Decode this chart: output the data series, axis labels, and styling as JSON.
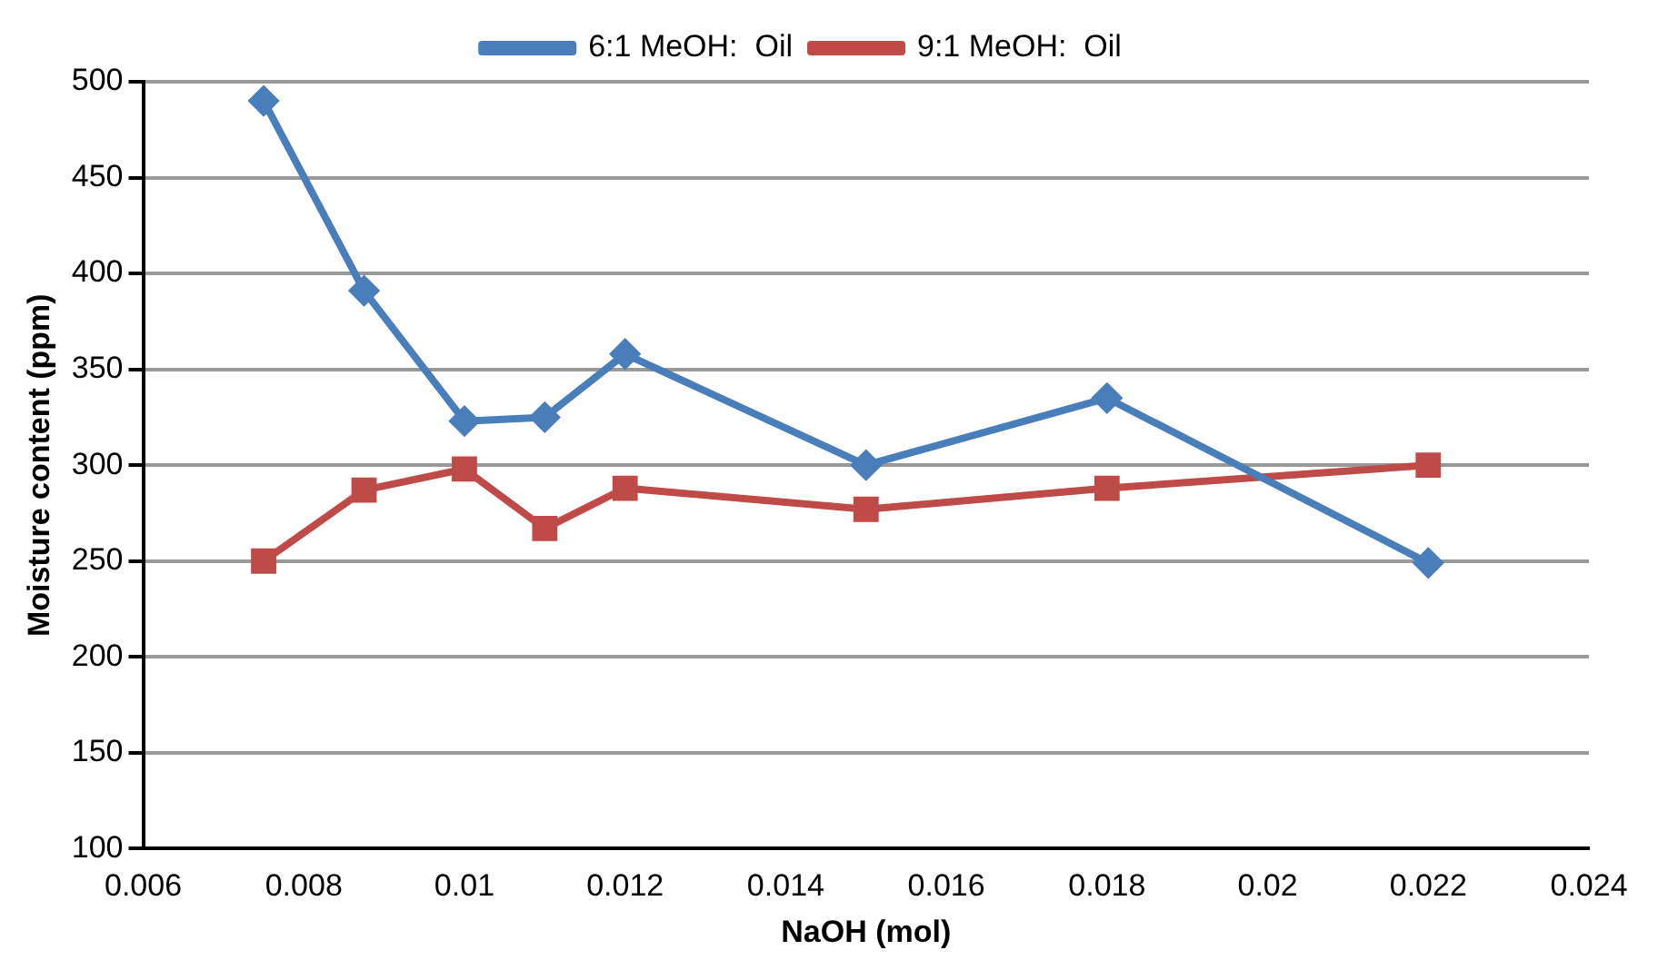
{
  "chart_data": {
    "type": "line",
    "xlabel": "NaOH (mol)",
    "ylabel": "Moisture content (ppm)",
    "x": [
      0.0075,
      0.00875,
      0.01,
      0.011,
      0.012,
      0.015,
      0.018,
      0.022
    ],
    "series": [
      {
        "name": "6:1 MeOH:  Oil",
        "color": "#4a7ebb",
        "marker": "diamond",
        "values": [
          490,
          391,
          323,
          325,
          358,
          300,
          335,
          249
        ]
      },
      {
        "name": "9:1 MeOH:  Oil",
        "color": "#be4b48",
        "marker": "square",
        "values": [
          250,
          287,
          298,
          267,
          288,
          277,
          288,
          300
        ]
      }
    ],
    "xlim": [
      0.006,
      0.024
    ],
    "xticks": [
      0.006,
      0.008,
      0.01,
      0.012,
      0.014,
      0.016,
      0.018,
      0.02,
      0.022,
      0.024
    ],
    "ylim": [
      100,
      500
    ],
    "yticks": [
      100,
      150,
      200,
      250,
      300,
      350,
      400,
      450,
      500
    ],
    "grid": "y",
    "legend": "top"
  }
}
